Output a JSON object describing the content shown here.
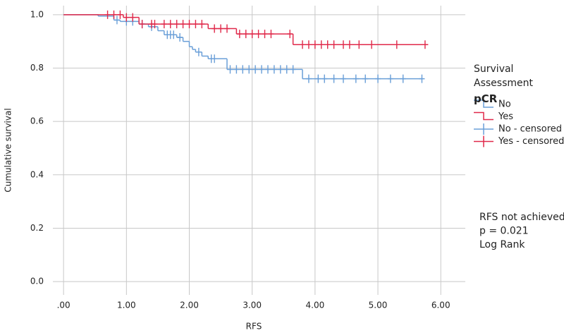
{
  "chart_data": {
    "type": "kaplan-meier",
    "x_label": "RFS",
    "y_label": "Cumulative survival",
    "legend_title": "Survival Assessment",
    "legend_subtitle": "pCR",
    "annotations": [
      "RFS not achieved",
      "p = 0.021",
      "Log Rank"
    ],
    "xlim": [
      -0.17,
      6.39
    ],
    "ylim": [
      -0.05,
      1.034
    ],
    "xticks": [
      {
        "value": 0,
        "label": ".00"
      },
      {
        "value": 1,
        "label": "1.00"
      },
      {
        "value": 2,
        "label": "2.00"
      },
      {
        "value": 3,
        "label": "3.00"
      },
      {
        "value": 4,
        "label": "4.00"
      },
      {
        "value": 5,
        "label": "5.00"
      },
      {
        "value": 6,
        "label": "6.00"
      }
    ],
    "yticks": [
      {
        "value": 0,
        "label": "0.0"
      },
      0.2,
      0.4,
      0.6,
      0.8,
      {
        "value": 1,
        "label": "1.0"
      }
    ],
    "grid": true,
    "series": [
      {
        "name": "No",
        "color": "#6a9fd8",
        "style": "step",
        "x": [
          0,
          0.55,
          0.8,
          0.9,
          1.2,
          1.35,
          1.5,
          1.6,
          1.8,
          1.9,
          2.0,
          2.05,
          2.1,
          2.2,
          2.3,
          2.6,
          3.8,
          5.7
        ],
        "values": [
          1.0,
          0.995,
          0.98,
          0.975,
          0.965,
          0.955,
          0.94,
          0.925,
          0.915,
          0.9,
          0.88,
          0.87,
          0.86,
          0.845,
          0.835,
          0.795,
          0.76,
          0.76
        ]
      },
      {
        "name": "Yes",
        "color": "#e0294a",
        "style": "step",
        "x": [
          0,
          0.95,
          1.2,
          2.3,
          2.75,
          3.65,
          5.8
        ],
        "values": [
          1.0,
          0.99,
          0.965,
          0.948,
          0.928,
          0.888,
          0.888
        ]
      },
      {
        "name": "No - censored",
        "color": "#6a9fd8",
        "style": "censor",
        "x": [
          0.85,
          1.0,
          1.1,
          1.25,
          1.4,
          1.65,
          1.7,
          1.75,
          1.85,
          2.15,
          2.35,
          2.4,
          2.65,
          2.75,
          2.85,
          2.95,
          3.05,
          3.15,
          3.25,
          3.35,
          3.45,
          3.55,
          3.65,
          3.9,
          4.05,
          4.15,
          4.3,
          4.45,
          4.65,
          4.8,
          5.0,
          5.2,
          5.4,
          5.7
        ],
        "values": [
          0.98,
          0.975,
          0.975,
          0.965,
          0.955,
          0.925,
          0.925,
          0.925,
          0.915,
          0.86,
          0.835,
          0.835,
          0.795,
          0.795,
          0.795,
          0.795,
          0.795,
          0.795,
          0.795,
          0.795,
          0.795,
          0.795,
          0.795,
          0.76,
          0.76,
          0.76,
          0.76,
          0.76,
          0.76,
          0.76,
          0.76,
          0.76,
          0.76,
          0.76
        ]
      },
      {
        "name": "Yes - censored",
        "color": "#e0294a",
        "style": "censor",
        "x": [
          0.7,
          0.8,
          0.9,
          1.0,
          1.1,
          1.25,
          1.4,
          1.45,
          1.6,
          1.7,
          1.8,
          1.9,
          2.0,
          2.1,
          2.2,
          2.4,
          2.5,
          2.6,
          2.8,
          2.9,
          3.0,
          3.1,
          3.2,
          3.3,
          3.6,
          3.8,
          3.9,
          4.0,
          4.1,
          4.2,
          4.3,
          4.45,
          4.55,
          4.7,
          4.9,
          5.3,
          5.75
        ],
        "values": [
          1.0,
          1.0,
          1.0,
          0.99,
          0.99,
          0.965,
          0.965,
          0.965,
          0.965,
          0.965,
          0.965,
          0.965,
          0.965,
          0.965,
          0.965,
          0.948,
          0.948,
          0.948,
          0.928,
          0.928,
          0.928,
          0.928,
          0.928,
          0.928,
          0.928,
          0.888,
          0.888,
          0.888,
          0.888,
          0.888,
          0.888,
          0.888,
          0.888,
          0.888,
          0.888,
          0.888,
          0.888
        ]
      }
    ]
  }
}
